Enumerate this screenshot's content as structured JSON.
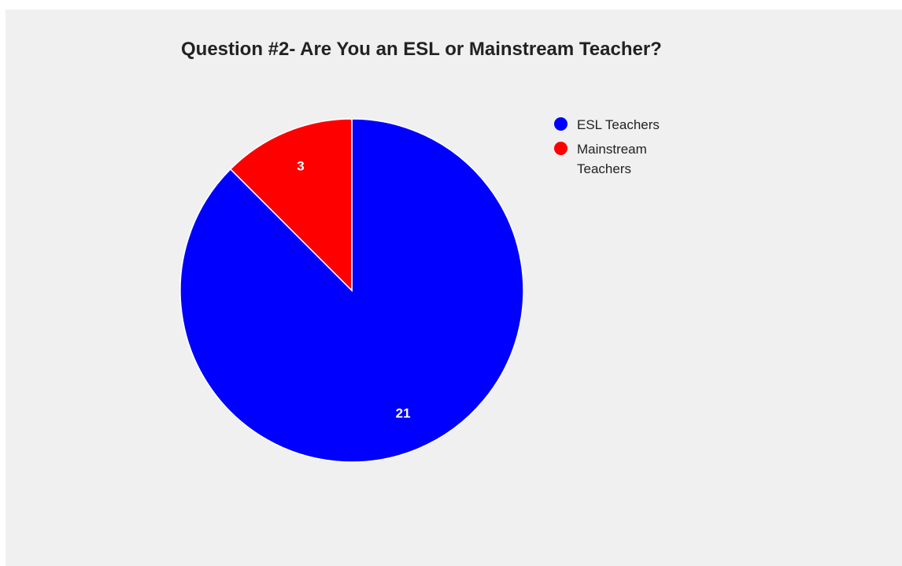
{
  "chart_data": {
    "type": "pie",
    "title": "Question #2- Are You an ESL or Mainstream Teacher?",
    "slices": [
      {
        "label": "ESL Teachers",
        "value": 21,
        "color": "#0000ff"
      },
      {
        "label": "Mainstream Teachers",
        "value": 3,
        "color": "#ff0000"
      }
    ],
    "legend_position": "right",
    "data_labels": true
  }
}
